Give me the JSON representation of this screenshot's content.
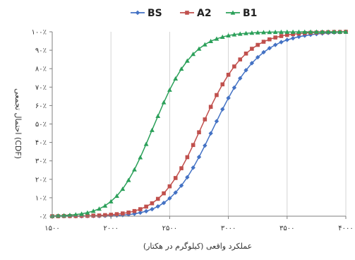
{
  "chart_data": {
    "type": "line",
    "title": "",
    "xlabel": "عملکرد واقعی (کیلوگرم در هکتار)",
    "ylabel": "احتمال تجمعی (CDF)",
    "xlim": [
      1500,
      4000
    ],
    "ylim": [
      0,
      100
    ],
    "x_ticks": [
      1500,
      2000,
      2500,
      3000,
      3500,
      4000
    ],
    "x_tick_labels": [
      "۱۵۰۰",
      "۲۰۰۰",
      "۲۵۰۰",
      "۳۰۰۰",
      "۳۵۰۰",
      "۴۰۰۰"
    ],
    "y_ticks": [
      0,
      10,
      20,
      30,
      40,
      50,
      60,
      70,
      80,
      90,
      100
    ],
    "y_tick_labels": [
      "۰٪",
      "۱۰٪",
      "۲۰٪",
      "۳۰٪",
      "۴۰٪",
      "۵۰٪",
      "۶۰٪",
      "۷۰٪",
      "۸۰٪",
      "۹۰٪",
      "۱۰۰٪"
    ],
    "grid": "vertical",
    "legend_position": "top",
    "series": [
      {
        "name": "BS",
        "color": "#4472C4",
        "marker": "diamond",
        "x": [
          1500,
          1550,
          1600,
          1650,
          1700,
          1750,
          1800,
          1850,
          1900,
          1950,
          2000,
          2050,
          2100,
          2150,
          2200,
          2250,
          2300,
          2350,
          2400,
          2450,
          2500,
          2550,
          2600,
          2650,
          2700,
          2750,
          2800,
          2850,
          2900,
          2950,
          3000,
          3050,
          3100,
          3150,
          3200,
          3250,
          3300,
          3350,
          3400,
          3450,
          3500,
          3550,
          3600,
          3650,
          3700,
          3750,
          3800,
          3850,
          3900,
          3950,
          4000
        ],
        "values": [
          0.0,
          0.0,
          0.0,
          0.0,
          0.0,
          0.0,
          0.1,
          0.1,
          0.1,
          0.2,
          0.3,
          0.4,
          0.6,
          0.9,
          1.3,
          1.9,
          2.7,
          3.8,
          5.3,
          7.2,
          9.7,
          12.8,
          16.6,
          21.1,
          26.3,
          32.1,
          38.3,
          44.9,
          51.5,
          58.0,
          64.1,
          69.7,
          74.8,
          79.2,
          83.0,
          86.2,
          88.9,
          91.1,
          92.9,
          94.4,
          95.6,
          96.5,
          97.3,
          97.9,
          98.4,
          98.8,
          99.1,
          99.4,
          99.6,
          99.8,
          100.0
        ]
      },
      {
        "name": "A2",
        "color": "#C0504D",
        "marker": "square",
        "x": [
          1500,
          1550,
          1600,
          1650,
          1700,
          1750,
          1800,
          1850,
          1900,
          1950,
          2000,
          2050,
          2100,
          2150,
          2200,
          2250,
          2300,
          2350,
          2400,
          2450,
          2500,
          2550,
          2600,
          2650,
          2700,
          2750,
          2800,
          2850,
          2900,
          2950,
          3000,
          3050,
          3100,
          3150,
          3200,
          3250,
          3300,
          3350,
          3400,
          3450,
          3500,
          3550,
          3600,
          3650,
          3700,
          3750,
          3800,
          3850,
          3900,
          3950,
          4000
        ],
        "values": [
          0.0,
          0.0,
          0.1,
          0.1,
          0.1,
          0.2,
          0.2,
          0.3,
          0.4,
          0.6,
          0.8,
          1.1,
          1.5,
          2.0,
          2.8,
          3.8,
          5.2,
          7.0,
          9.4,
          12.4,
          16.2,
          20.7,
          26.0,
          32.0,
          38.6,
          45.5,
          52.5,
          59.3,
          65.7,
          71.5,
          76.7,
          81.2,
          85.0,
          88.2,
          90.8,
          92.9,
          94.6,
          95.9,
          96.9,
          97.7,
          98.3,
          98.7,
          99.0,
          99.3,
          99.5,
          99.6,
          99.7,
          99.8,
          99.9,
          99.9,
          100.0
        ]
      },
      {
        "name": "B1",
        "color": "#2CA05A",
        "marker": "triangle",
        "x": [
          1500,
          1550,
          1600,
          1650,
          1700,
          1750,
          1800,
          1850,
          1900,
          1950,
          2000,
          2050,
          2100,
          2150,
          2200,
          2250,
          2300,
          2350,
          2400,
          2450,
          2500,
          2550,
          2600,
          2650,
          2700,
          2750,
          2800,
          2850,
          2900,
          2950,
          3000,
          3050,
          3100,
          3150,
          3200,
          3250,
          3300,
          3350,
          3400,
          3450,
          3500,
          3550,
          3600,
          3650,
          3700,
          3750,
          3800,
          3850,
          3900,
          3950,
          4000
        ],
        "values": [
          0.2,
          0.3,
          0.4,
          0.6,
          0.9,
          1.3,
          1.9,
          2.8,
          4.0,
          5.7,
          8.0,
          11.0,
          14.8,
          19.6,
          25.3,
          31.9,
          39.1,
          46.7,
          54.3,
          61.7,
          68.5,
          74.6,
          79.9,
          84.3,
          87.9,
          90.8,
          93.1,
          94.9,
          96.2,
          97.2,
          98.0,
          98.5,
          98.9,
          99.2,
          99.4,
          99.6,
          99.7,
          99.8,
          99.85,
          99.9,
          99.92,
          99.94,
          99.95,
          99.96,
          99.97,
          99.98,
          99.98,
          99.99,
          99.99,
          100.0,
          100.0
        ]
      }
    ]
  }
}
